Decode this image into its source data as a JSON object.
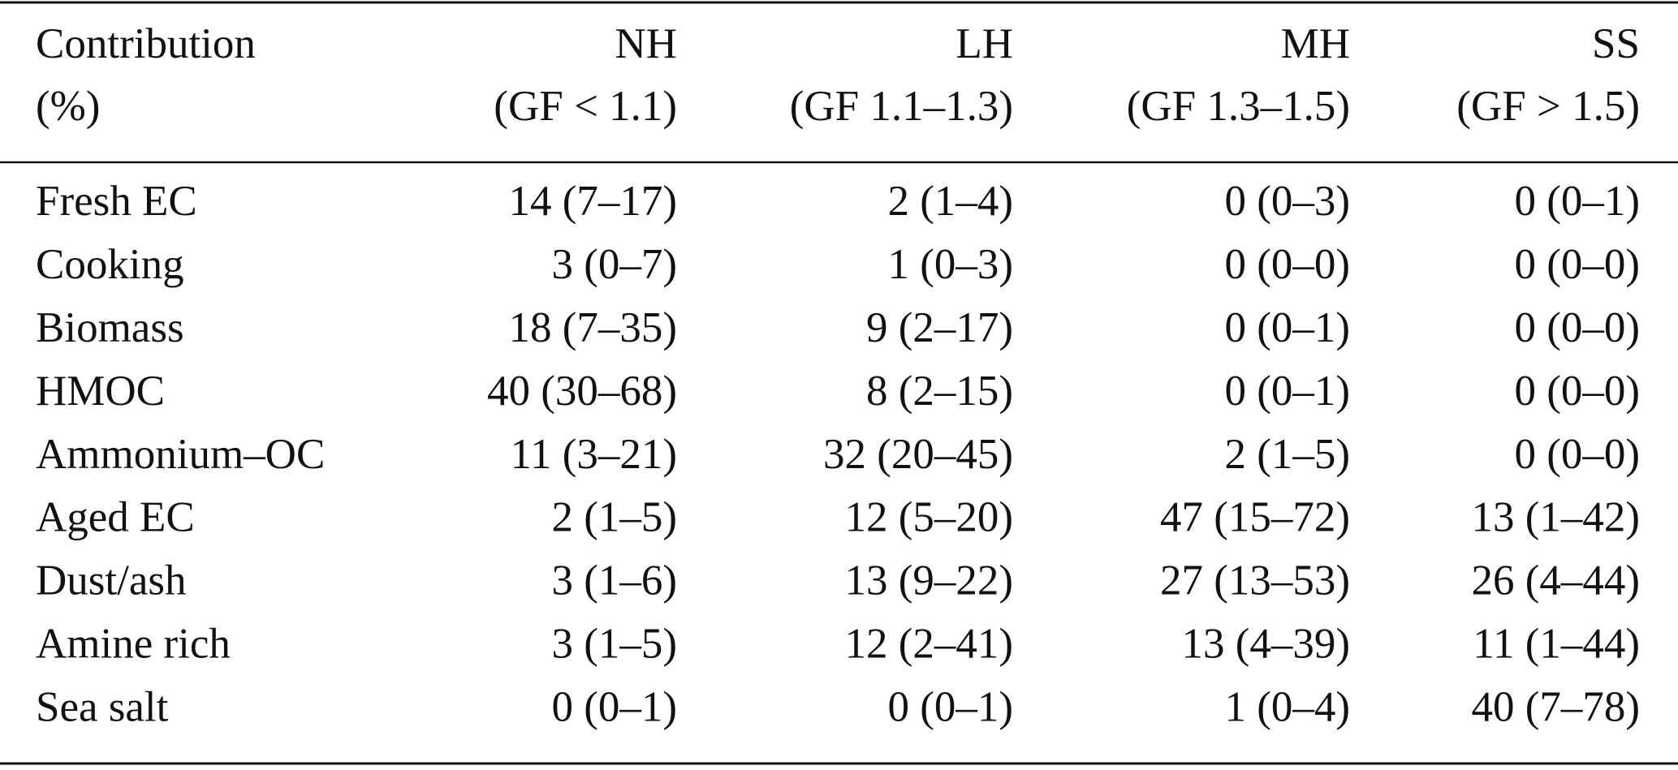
{
  "table": {
    "header": [
      [
        "Contribution",
        "(%)"
      ],
      [
        "NH",
        "(GF < 1.1)"
      ],
      [
        "LH",
        "(GF 1.1–1.3)"
      ],
      [
        "MH",
        "(GF 1.3–1.5)"
      ],
      [
        "SS",
        "(GF > 1.5)"
      ]
    ],
    "rows": [
      [
        "Fresh EC",
        "14 (7–17)",
        "2 (1–4)",
        "0 (0–3)",
        "0 (0–1)"
      ],
      [
        "Cooking",
        "3 (0–7)",
        "1 (0–3)",
        "0 (0–0)",
        "0 (0–0)"
      ],
      [
        "Biomass",
        "18 (7–35)",
        "9 (2–17)",
        "0 (0–1)",
        "0 (0–0)"
      ],
      [
        "HMOC",
        "40 (30–68)",
        "8 (2–15)",
        "0 (0–1)",
        "0 (0–0)"
      ],
      [
        "Ammonium–OC",
        "11 (3–21)",
        "32 (20–45)",
        "2 (1–5)",
        "0 (0–0)"
      ],
      [
        "Aged EC",
        "2 (1–5)",
        "12 (5–20)",
        "47 (15–72)",
        "13 (1–42)"
      ],
      [
        "Dust/ash",
        "3 (1–6)",
        "13 (9–22)",
        "27 (13–53)",
        "26 (4–44)"
      ],
      [
        "Amine rich",
        "3 (1–5)",
        "12 (2–41)",
        "13 (4–39)",
        "11 (1–44)"
      ],
      [
        "Sea salt",
        "0 (0–1)",
        "0 (0–1)",
        "1 (0–4)",
        "40 (7–78)"
      ]
    ]
  }
}
